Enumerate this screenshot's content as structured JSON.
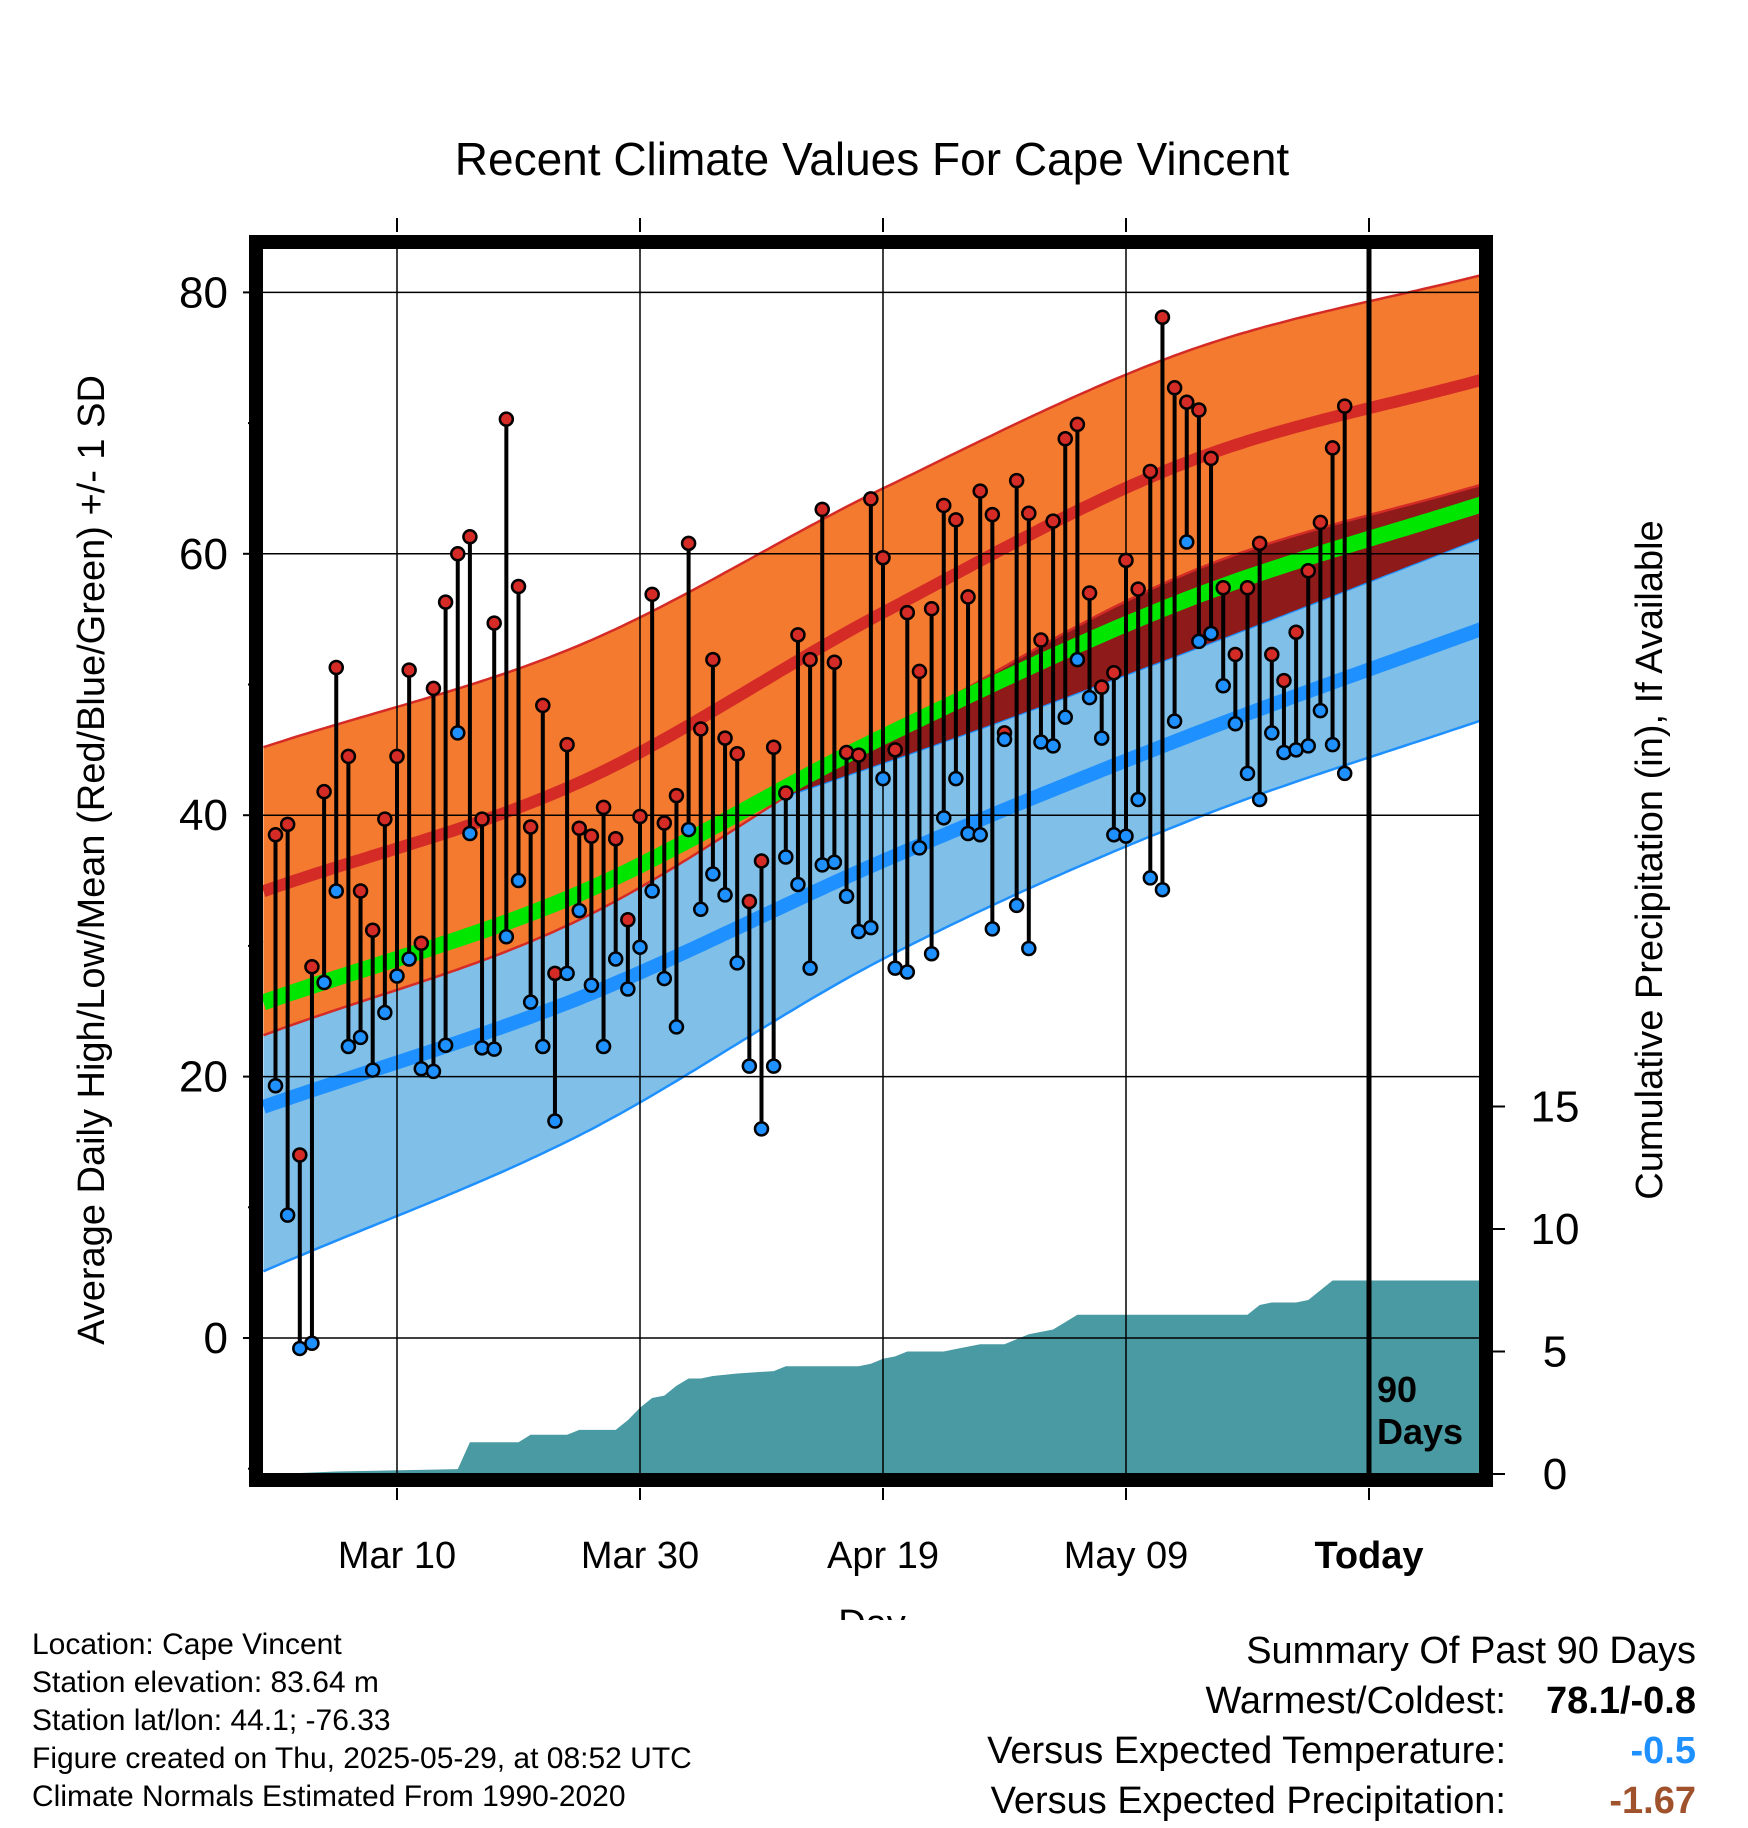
{
  "chart_data": {
    "type": "line",
    "title": "Recent Climate Values For Cape Vincent",
    "xlabel": "Day",
    "ylabel": "Average Daily High/Low/Mean (Red/Blue/Green) +/- 1 SD",
    "y2label": "Cumulative Precipitation (in), If Available",
    "xticks": [
      {
        "day": 10,
        "label": "Mar 10"
      },
      {
        "day": 30,
        "label": "Mar 30"
      },
      {
        "day": 50,
        "label": "Apr 19"
      },
      {
        "day": 70,
        "label": "May 09"
      },
      {
        "day": 90,
        "label": "Today"
      }
    ],
    "yticks": [
      0,
      20,
      40,
      60,
      80
    ],
    "ylim": [
      -10,
      84
    ],
    "y2ticks": [
      0,
      5,
      10,
      15
    ],
    "y2lim": [
      0,
      32
    ],
    "xlim": [
      -1,
      100
    ],
    "marker_label": "90\nDays",
    "marker_day": 90,
    "normals": {
      "day": [
        0,
        25,
        50,
        75,
        100
      ],
      "high": [
        34.5,
        42.5,
        55.5,
        67,
        73.5
      ],
      "high_sd": [
        11,
        10.5,
        9.5,
        8.5,
        8
      ],
      "low": [
        18,
        26,
        36.5,
        46,
        54.5
      ],
      "low_sd": [
        12.5,
        10.5,
        7.5,
        6.5,
        7
      ],
      "mean": [
        26,
        34,
        46,
        56.5,
        64
      ]
    },
    "highs": [
      38.5,
      39.3,
      14,
      28.4,
      41.8,
      51.3,
      44.5,
      34.2,
      31.2,
      39.7,
      44.5,
      51.1,
      30.2,
      49.7,
      56.3,
      60,
      61.3,
      39.7,
      54.7,
      70.3,
      57.5,
      39.1,
      48.4,
      27.9,
      45.4,
      39,
      38.4,
      40.6,
      38.2,
      32,
      39.9,
      56.9,
      39.4,
      41.5,
      60.8,
      46.6,
      51.9,
      45.9,
      44.7,
      33.4,
      36.5,
      45.2,
      41.7,
      53.8,
      51.9,
      63.4,
      51.7,
      44.8,
      44.6,
      64.2,
      59.7,
      45,
      55.5,
      51,
      55.8,
      63.7,
      62.6,
      56.7,
      64.8,
      63,
      46.3,
      65.6,
      63.1,
      53.4,
      62.5,
      68.8,
      69.9,
      57,
      49.8,
      50.9,
      59.5,
      57.3,
      66.3,
      78.1,
      72.7,
      71.6,
      71,
      67.3,
      57.4,
      52.3,
      57.4,
      60.8,
      52.3,
      50.3,
      54,
      58.7,
      62.4,
      68.1,
      71.3
    ],
    "lows": [
      19.3,
      9.4,
      -0.8,
      -0.4,
      27.2,
      34.2,
      22.3,
      23,
      20.5,
      24.9,
      27.7,
      29,
      20.6,
      20.4,
      22.4,
      46.3,
      38.6,
      22.2,
      22.1,
      30.7,
      35,
      25.7,
      22.3,
      16.6,
      27.9,
      32.7,
      27,
      22.3,
      29,
      26.7,
      29.9,
      34.2,
      27.5,
      23.8,
      38.9,
      32.8,
      35.5,
      33.9,
      28.7,
      20.8,
      16,
      20.8,
      36.8,
      34.7,
      28.3,
      36.2,
      36.4,
      33.8,
      31.1,
      31.4,
      42.8,
      28.3,
      28,
      37.5,
      29.4,
      39.8,
      42.8,
      38.6,
      38.5,
      31.3,
      45.8,
      33.1,
      29.8,
      45.6,
      45.3,
      47.5,
      51.9,
      49,
      45.9,
      38.5,
      38.4,
      41.2,
      35.2,
      34.3,
      47.2,
      60.9,
      53.3,
      53.9,
      49.9,
      47,
      43.2,
      41.2,
      46.3,
      44.8,
      45,
      45.3,
      48,
      45.4,
      43.2,
      43.6
    ],
    "precip": {
      "day": [
        0,
        5,
        15,
        16,
        17,
        20,
        21,
        23,
        24,
        25,
        28,
        29,
        30,
        31,
        32,
        33,
        34,
        35,
        36,
        38,
        41,
        42,
        43,
        44,
        48,
        49,
        50,
        51,
        52,
        55,
        56,
        58,
        60,
        61,
        62,
        64,
        65,
        66,
        67,
        68,
        69,
        70,
        71,
        72,
        73,
        74,
        75,
        76,
        77,
        78,
        79,
        80,
        81,
        82,
        83,
        84,
        85,
        86,
        87,
        88,
        89,
        90,
        91,
        92,
        93,
        94,
        95,
        96,
        97,
        98,
        99,
        100
      ],
      "value": [
        0,
        0.1,
        0.2,
        1.3,
        1.3,
        1.3,
        1.6,
        1.6,
        1.6,
        1.8,
        1.8,
        2.2,
        2.7,
        3.1,
        3.2,
        3.6,
        3.9,
        3.9,
        4,
        4.1,
        4.2,
        4.4,
        4.4,
        4.4,
        4.4,
        4.5,
        4.7,
        4.8,
        5,
        5,
        5.1,
        5.3,
        5.3,
        5.5,
        5.7,
        5.9,
        6.2,
        6.5,
        6.5,
        6.5,
        6.5,
        6.5,
        6.5,
        6.5,
        6.5,
        6.5,
        6.5,
        6.5,
        6.5,
        6.5,
        6.5,
        6.5,
        6.9,
        7,
        7,
        7,
        7.1,
        7.5,
        7.9,
        7.9,
        7.9,
        7.9,
        7.9,
        7.9,
        7.9,
        7.9,
        7.9,
        7.9,
        7.9,
        7.9,
        7.9,
        7.9
      ]
    },
    "colors": {
      "high_band": "#f47a30",
      "high_line": "#d42b26",
      "low_band": "#80c0e8",
      "low_line": "#1e90ff",
      "mean_line": "#00e600",
      "precip": "#4a9aa3",
      "high_dot": "#d42b26",
      "low_dot": "#1e90ff"
    },
    "legend": "none",
    "grid": true
  },
  "info": {
    "location": "Location: Cape Vincent",
    "elevation": "Station elevation: 83.64 m",
    "latlon": "Station lat/lon: 44.1; -76.33",
    "created": "Figure created on Thu, 2025-05-29, at 08:52 UTC",
    "normals": "Climate Normals Estimated From 1990-2020"
  },
  "summary": {
    "heading": "Summary Of Past 90 Days",
    "warmest_label": "Warmest/Coldest:",
    "warmest_value": "78.1/-0.8",
    "temp_label": "Versus Expected Temperature:",
    "temp_value": "-0.5",
    "precip_label": "Versus Expected Precipitation:",
    "precip_value": "-1.67"
  }
}
